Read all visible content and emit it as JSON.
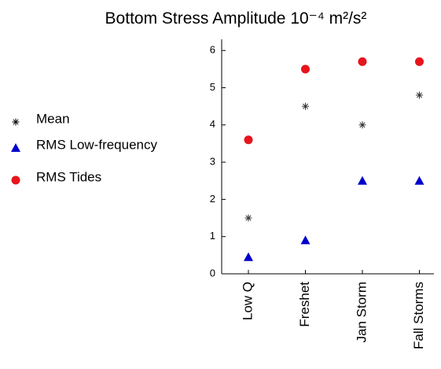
{
  "chart_data": {
    "type": "scatter",
    "title": "Bottom Stress Amplitude 10⁻⁴ m²/s²",
    "categories": [
      "Low Q",
      "Freshet",
      "Jan Storm",
      "Fall Storms"
    ],
    "series": [
      {
        "name": "Mean",
        "color": "#333333",
        "marker": "star",
        "values": [
          1.5,
          4.5,
          4.0,
          4.8
        ]
      },
      {
        "name": "RMS Low-frequency",
        "color": "#0000cc",
        "marker": "triangle",
        "values": [
          0.45,
          0.9,
          2.5,
          2.5
        ]
      },
      {
        "name": "RMS Tides",
        "color": "#e8141b",
        "marker": "circle",
        "values": [
          3.6,
          5.5,
          5.7,
          5.7
        ]
      }
    ],
    "ylim": [
      0,
      6.3
    ],
    "yticks": [
      0,
      1,
      2,
      3,
      4,
      5,
      6
    ],
    "legend": "left"
  }
}
